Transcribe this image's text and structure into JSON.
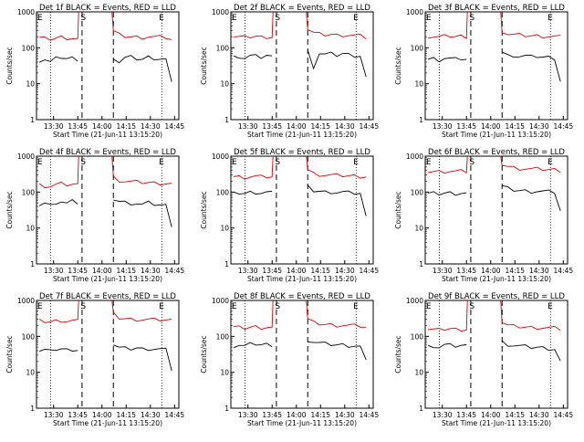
{
  "figure": {
    "axis_ylabel": "Counts/sec",
    "axis_xlabel": "Start Time (21-Jun-11 13:15:20)",
    "x_ticks": [
      "13:30",
      "13:45",
      "14:00",
      "14:15",
      "14:30",
      "14:45"
    ],
    "y_ticks": [
      "1",
      "10",
      "100",
      "1000"
    ],
    "markers": {
      "E_left": "E",
      "S": "S",
      "E_right": "E"
    }
  },
  "colors": {
    "events": "#000000",
    "lld": "#e00000",
    "axes": "#000000"
  },
  "chart_data": [
    {
      "type": "line",
      "title": "Det 1f BLACK = Events, RED = LLD",
      "ylim": [
        1,
        1000
      ],
      "y_log": true,
      "series": [
        {
          "name": "BLACK = Events",
          "values": [
            45,
            48,
            40,
            50,
            55,
            50,
            52,
            48,
            55,
            40,
            52,
            55,
            50,
            48,
            55,
            52,
            50,
            48,
            10
          ]
        },
        {
          "name": "RED = LLD",
          "values": [
            190,
            180,
            175,
            185,
            200,
            190,
            185,
            175,
            290,
            230,
            210,
            200,
            200,
            195,
            205,
            200,
            200,
            195,
            170
          ]
        }
      ]
    },
    {
      "type": "line",
      "title": "Det 2f BLACK = Events, RED = LLD",
      "ylim": [
        1,
        1000
      ],
      "y_log": true,
      "series": [
        {
          "name": "BLACK = Events",
          "values": [
            55,
            58,
            52,
            60,
            58,
            55,
            62,
            55,
            80,
            30,
            70,
            65,
            68,
            62,
            70,
            65,
            62,
            60,
            15
          ]
        },
        {
          "name": "RED = LLD",
          "values": [
            210,
            200,
            195,
            205,
            210,
            200,
            205,
            200,
            330,
            260,
            240,
            230,
            235,
            225,
            230,
            225,
            220,
            215,
            190
          ]
        }
      ]
    },
    {
      "type": "line",
      "title": "Det 3f BLACK = Events, RED = LLD",
      "ylim": [
        1,
        1000
      ],
      "y_log": true,
      "series": [
        {
          "name": "BLACK = Events",
          "values": [
            48,
            50,
            46,
            52,
            50,
            48,
            50,
            48,
            75,
            60,
            62,
            58,
            60,
            56,
            58,
            55,
            54,
            52,
            12
          ]
        },
        {
          "name": "RED = LLD",
          "values": [
            210,
            205,
            200,
            210,
            215,
            205,
            210,
            205,
            300,
            240,
            230,
            225,
            220,
            215,
            215,
            210,
            210,
            205,
            200
          ]
        }
      ]
    },
    {
      "type": "line",
      "title": "Det 4f BLACK = Events, RED = LLD",
      "ylim": [
        1,
        1000
      ],
      "y_log": true,
      "series": [
        {
          "name": "BLACK = Events",
          "values": [
            45,
            50,
            42,
            52,
            55,
            48,
            55,
            50,
            65,
            55,
            52,
            50,
            48,
            45,
            50,
            46,
            44,
            42,
            12
          ]
        },
        {
          "name": "RED = LLD",
          "values": [
            160,
            150,
            145,
            160,
            170,
            160,
            165,
            160,
            260,
            215,
            200,
            195,
            190,
            185,
            185,
            180,
            178,
            175,
            170
          ]
        }
      ]
    },
    {
      "type": "line",
      "title": "Det 5f BLACK = Events, RED = LLD",
      "ylim": [
        1,
        1000
      ],
      "y_log": true,
      "series": [
        {
          "name": "BLACK = Events",
          "values": [
            90,
            95,
            92,
            98,
            100,
            95,
            98,
            95,
            140,
            110,
            105,
            100,
            102,
            98,
            100,
            96,
            94,
            92,
            20
          ]
        },
        {
          "name": "RED = LLD",
          "values": [
            270,
            265,
            260,
            270,
            275,
            265,
            270,
            265,
            420,
            330,
            310,
            300,
            295,
            290,
            290,
            285,
            280,
            278,
            275
          ]
        }
      ]
    },
    {
      "type": "line",
      "title": "Det 6f BLACK = Events, RED = LLD",
      "ylim": [
        1,
        1000
      ],
      "y_log": true,
      "series": [
        {
          "name": "BLACK = Events",
          "values": [
            90,
            92,
            90,
            94,
            95,
            92,
            94,
            92,
            145,
            125,
            115,
            110,
            108,
            105,
            106,
            104,
            102,
            100,
            30
          ]
        },
        {
          "name": "RED = LLD",
          "values": [
            380,
            375,
            370,
            380,
            385,
            375,
            380,
            375,
            600,
            520,
            480,
            460,
            450,
            440,
            440,
            430,
            425,
            420,
            400
          ]
        }
      ]
    },
    {
      "type": "line",
      "title": "Det 7f BLACK = Events, RED = LLD",
      "ylim": [
        1,
        1000
      ],
      "y_log": true,
      "series": [
        {
          "name": "BLACK = Events",
          "values": [
            40,
            42,
            38,
            44,
            45,
            42,
            44,
            42,
            60,
            48,
            46,
            45,
            48,
            44,
            46,
            45,
            44,
            42,
            12
          ]
        },
        {
          "name": "RED = LLD",
          "values": [
            270,
            260,
            255,
            270,
            280,
            265,
            270,
            265,
            420,
            330,
            310,
            300,
            300,
            295,
            295,
            290,
            290,
            285,
            280
          ]
        }
      ]
    },
    {
      "type": "line",
      "title": "Det 8f BLACK = Events, RED = LLD",
      "ylim": [
        1,
        1000
      ],
      "y_log": true,
      "series": [
        {
          "name": "BLACK = Events",
          "values": [
            55,
            58,
            54,
            60,
            62,
            58,
            60,
            58,
            80,
            70,
            65,
            62,
            60,
            58,
            58,
            56,
            55,
            52,
            20
          ]
        },
        {
          "name": "RED = LLD",
          "values": [
            180,
            175,
            170,
            180,
            185,
            178,
            180,
            175,
            300,
            240,
            225,
            215,
            210,
            205,
            205,
            200,
            198,
            195,
            180
          ]
        }
      ]
    },
    {
      "type": "line",
      "title": "Det 9f BLACK = Events, RED = LLD",
      "ylim": [
        1,
        1000
      ],
      "y_log": true,
      "series": [
        {
          "name": "BLACK = Events",
          "values": [
            52,
            55,
            50,
            58,
            56,
            54,
            56,
            54,
            70,
            60,
            56,
            54,
            52,
            50,
            50,
            48,
            46,
            45,
            20
          ]
        },
        {
          "name": "RED = LLD",
          "values": [
            160,
            155,
            150,
            160,
            165,
            158,
            160,
            155,
            250,
            200,
            190,
            185,
            180,
            178,
            178,
            175,
            172,
            170,
            160
          ]
        }
      ]
    }
  ]
}
